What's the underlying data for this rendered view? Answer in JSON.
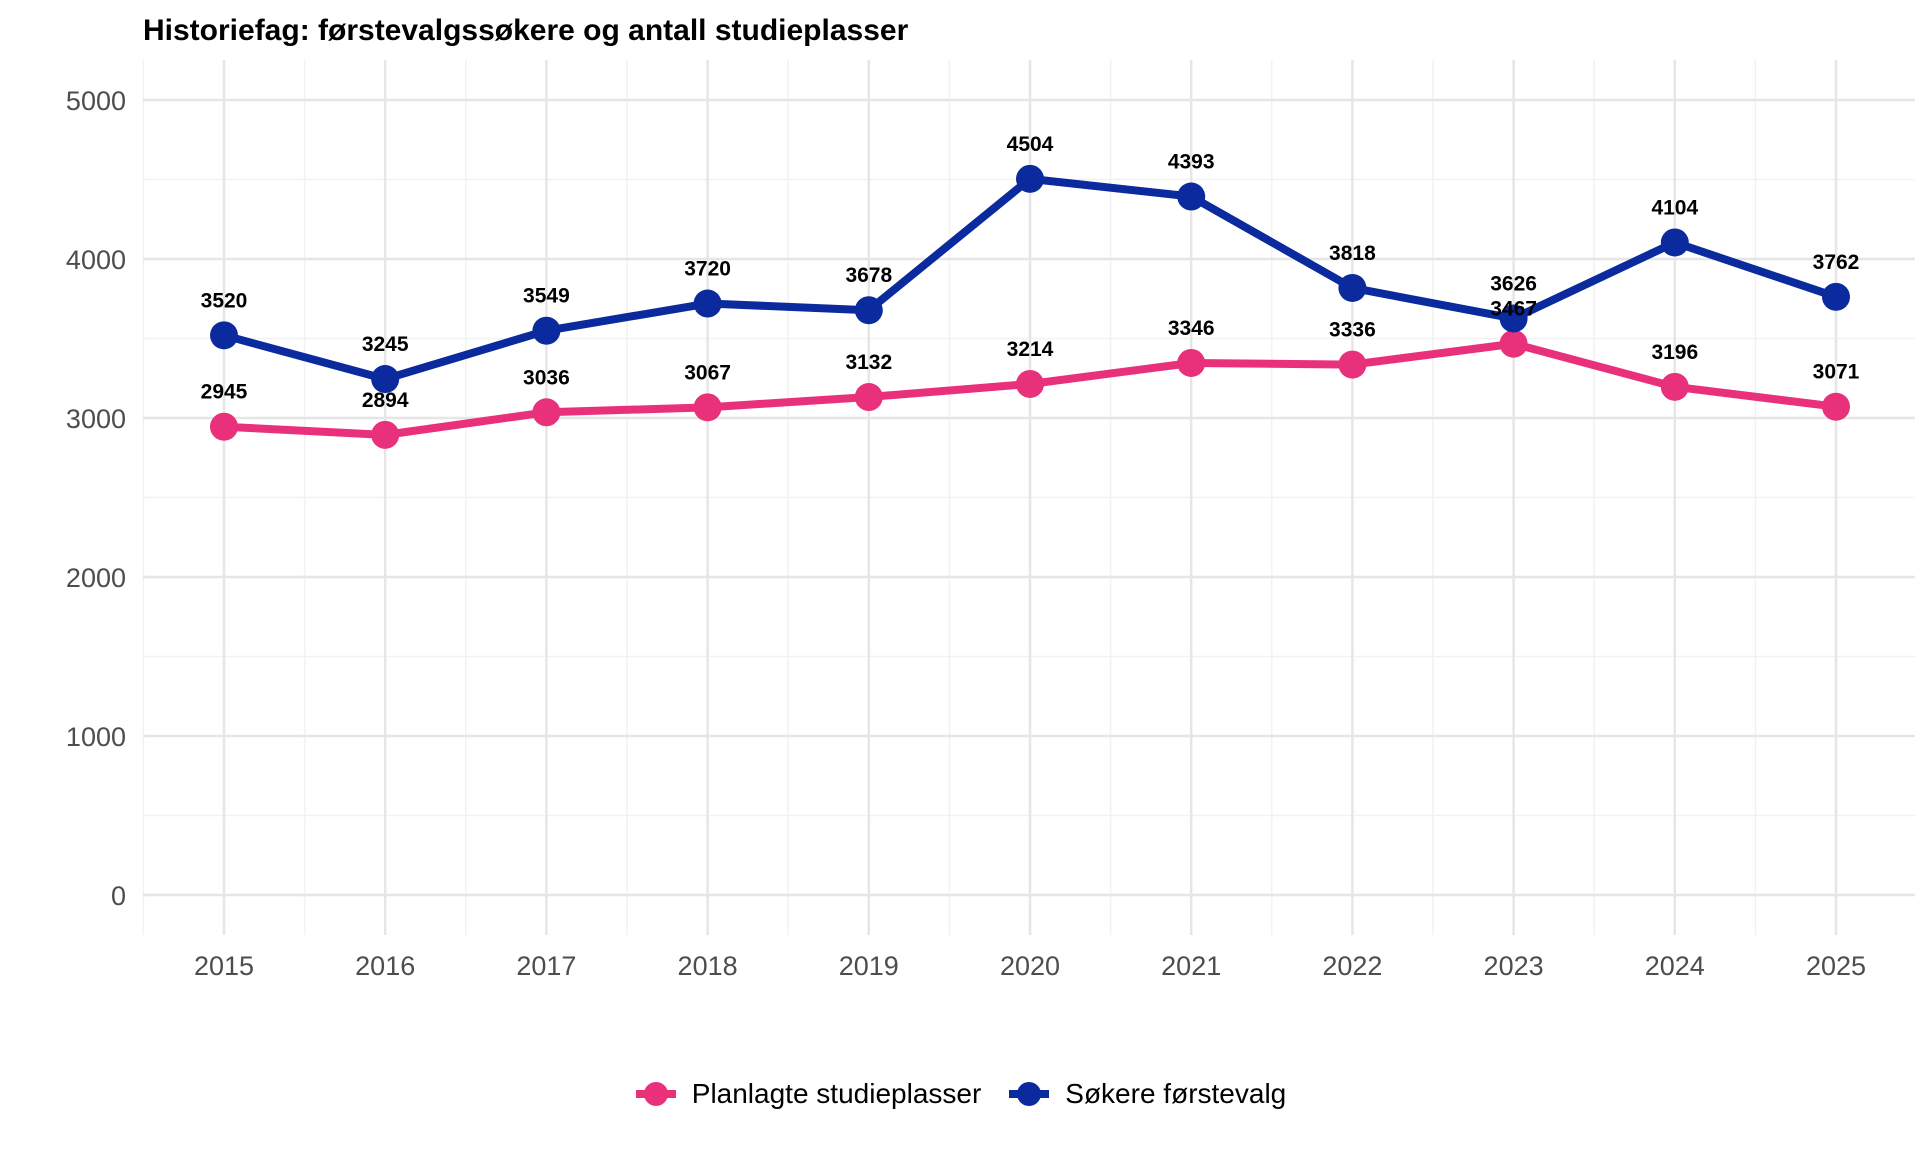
{
  "chart_data": {
    "type": "line",
    "title": "Historiefag: førstevalgssøkere og antall studieplasser",
    "xlabel": "",
    "ylabel": "",
    "x": [
      2015,
      2016,
      2017,
      2018,
      2019,
      2020,
      2021,
      2022,
      2023,
      2024,
      2025
    ],
    "ylim": [
      0,
      5000
    ],
    "yticks": [
      0,
      1000,
      2000,
      3000,
      4000,
      5000
    ],
    "grid": true,
    "legend_position": "bottom",
    "series": [
      {
        "name": "Planlagte studieplasser",
        "color": "#E8317A",
        "values": [
          2945,
          2894,
          3036,
          3067,
          3132,
          3214,
          3346,
          3336,
          3467,
          3196,
          3071
        ]
      },
      {
        "name": "Søkere førstevalg",
        "color": "#0A2A9E",
        "values": [
          3520,
          3245,
          3549,
          3720,
          3678,
          4504,
          4393,
          3818,
          3626,
          4104,
          3762
        ]
      }
    ]
  },
  "legend": {
    "items": [
      {
        "label": "Planlagte studieplasser",
        "color": "#E8317A"
      },
      {
        "label": "Søkere førstevalg",
        "color": "#0A2A9E"
      }
    ]
  }
}
